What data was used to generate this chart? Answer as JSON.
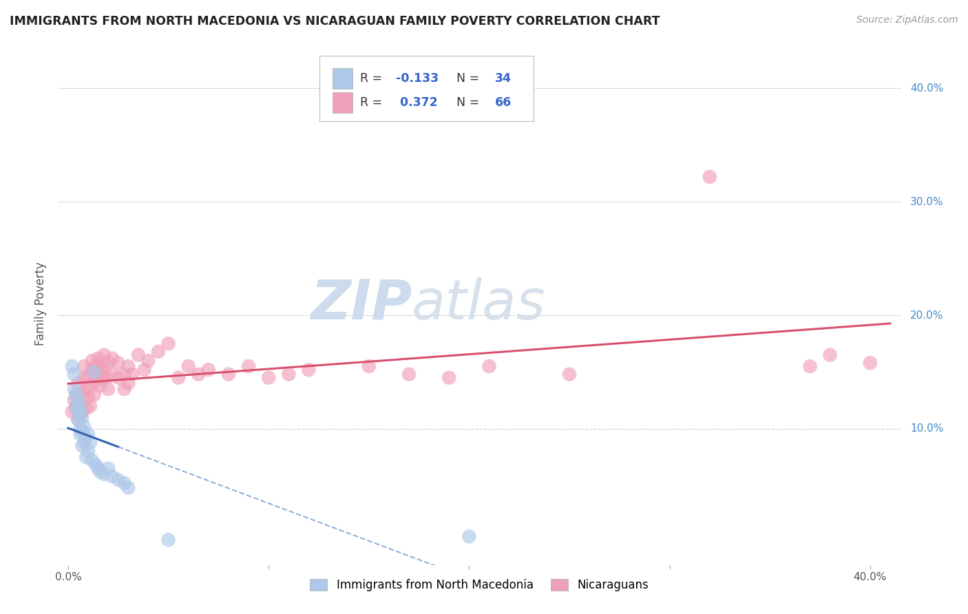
{
  "title": "IMMIGRANTS FROM NORTH MACEDONIA VS NICARAGUAN FAMILY POVERTY CORRELATION CHART",
  "source": "Source: ZipAtlas.com",
  "ylabel": "Family Poverty",
  "ytick_values": [
    0.0,
    0.1,
    0.2,
    0.3,
    0.4
  ],
  "ytick_labels": [
    "",
    "10.0%",
    "20.0%",
    "30.0%",
    "40.0%"
  ],
  "xlim": [
    -0.005,
    0.415
  ],
  "ylim": [
    -0.02,
    0.44
  ],
  "legend_label1": "Immigrants from North Macedonia",
  "legend_label2": "Nicaraguans",
  "blue_color": "#adc8e8",
  "pink_color": "#f0a0b8",
  "blue_line_color": "#3060b0",
  "pink_line_color": "#d85070",
  "blue_line_dash_color": "#90b0d8",
  "watermark_zip": "ZIP",
  "watermark_atlas": "atlas",
  "watermark_color": "#ccdcec",
  "blue_R": -0.133,
  "pink_R": 0.372,
  "blue_N": 34,
  "pink_N": 66,
  "blue_scatter": [
    [
      0.002,
      0.155
    ],
    [
      0.003,
      0.148
    ],
    [
      0.003,
      0.135
    ],
    [
      0.004,
      0.13
    ],
    [
      0.004,
      0.12
    ],
    [
      0.005,
      0.125
    ],
    [
      0.005,
      0.115
    ],
    [
      0.005,
      0.108
    ],
    [
      0.006,
      0.118
    ],
    [
      0.006,
      0.1
    ],
    [
      0.006,
      0.095
    ],
    [
      0.007,
      0.11
    ],
    [
      0.007,
      0.098
    ],
    [
      0.007,
      0.085
    ],
    [
      0.008,
      0.102
    ],
    [
      0.008,
      0.088
    ],
    [
      0.009,
      0.092
    ],
    [
      0.009,
      0.075
    ],
    [
      0.01,
      0.095
    ],
    [
      0.01,
      0.08
    ],
    [
      0.011,
      0.088
    ],
    [
      0.012,
      0.072
    ],
    [
      0.013,
      0.15
    ],
    [
      0.014,
      0.068
    ],
    [
      0.015,
      0.065
    ],
    [
      0.016,
      0.062
    ],
    [
      0.018,
      0.06
    ],
    [
      0.02,
      0.065
    ],
    [
      0.022,
      0.058
    ],
    [
      0.025,
      0.055
    ],
    [
      0.028,
      0.052
    ],
    [
      0.03,
      0.048
    ],
    [
      0.05,
      0.002
    ],
    [
      0.2,
      0.005
    ]
  ],
  "pink_scatter": [
    [
      0.002,
      0.115
    ],
    [
      0.003,
      0.125
    ],
    [
      0.004,
      0.118
    ],
    [
      0.004,
      0.13
    ],
    [
      0.005,
      0.108
    ],
    [
      0.005,
      0.14
    ],
    [
      0.006,
      0.12
    ],
    [
      0.006,
      0.112
    ],
    [
      0.007,
      0.13
    ],
    [
      0.007,
      0.115
    ],
    [
      0.008,
      0.145
    ],
    [
      0.008,
      0.155
    ],
    [
      0.009,
      0.135
    ],
    [
      0.009,
      0.118
    ],
    [
      0.01,
      0.128
    ],
    [
      0.01,
      0.145
    ],
    [
      0.011,
      0.138
    ],
    [
      0.011,
      0.12
    ],
    [
      0.012,
      0.152
    ],
    [
      0.012,
      0.16
    ],
    [
      0.013,
      0.148
    ],
    [
      0.013,
      0.13
    ],
    [
      0.014,
      0.155
    ],
    [
      0.014,
      0.142
    ],
    [
      0.015,
      0.162
    ],
    [
      0.015,
      0.148
    ],
    [
      0.016,
      0.155
    ],
    [
      0.016,
      0.138
    ],
    [
      0.017,
      0.145
    ],
    [
      0.018,
      0.165
    ],
    [
      0.018,
      0.152
    ],
    [
      0.019,
      0.145
    ],
    [
      0.02,
      0.158
    ],
    [
      0.02,
      0.135
    ],
    [
      0.022,
      0.148
    ],
    [
      0.022,
      0.162
    ],
    [
      0.025,
      0.145
    ],
    [
      0.025,
      0.158
    ],
    [
      0.028,
      0.148
    ],
    [
      0.028,
      0.135
    ],
    [
      0.03,
      0.14
    ],
    [
      0.03,
      0.155
    ],
    [
      0.032,
      0.148
    ],
    [
      0.035,
      0.165
    ],
    [
      0.038,
      0.152
    ],
    [
      0.04,
      0.16
    ],
    [
      0.045,
      0.168
    ],
    [
      0.05,
      0.175
    ],
    [
      0.055,
      0.145
    ],
    [
      0.06,
      0.155
    ],
    [
      0.065,
      0.148
    ],
    [
      0.07,
      0.152
    ],
    [
      0.08,
      0.148
    ],
    [
      0.09,
      0.155
    ],
    [
      0.1,
      0.145
    ],
    [
      0.11,
      0.148
    ],
    [
      0.12,
      0.152
    ],
    [
      0.15,
      0.155
    ],
    [
      0.17,
      0.148
    ],
    [
      0.19,
      0.145
    ],
    [
      0.21,
      0.155
    ],
    [
      0.25,
      0.148
    ],
    [
      0.32,
      0.322
    ],
    [
      0.37,
      0.155
    ],
    [
      0.38,
      0.165
    ],
    [
      0.4,
      0.158
    ]
  ]
}
